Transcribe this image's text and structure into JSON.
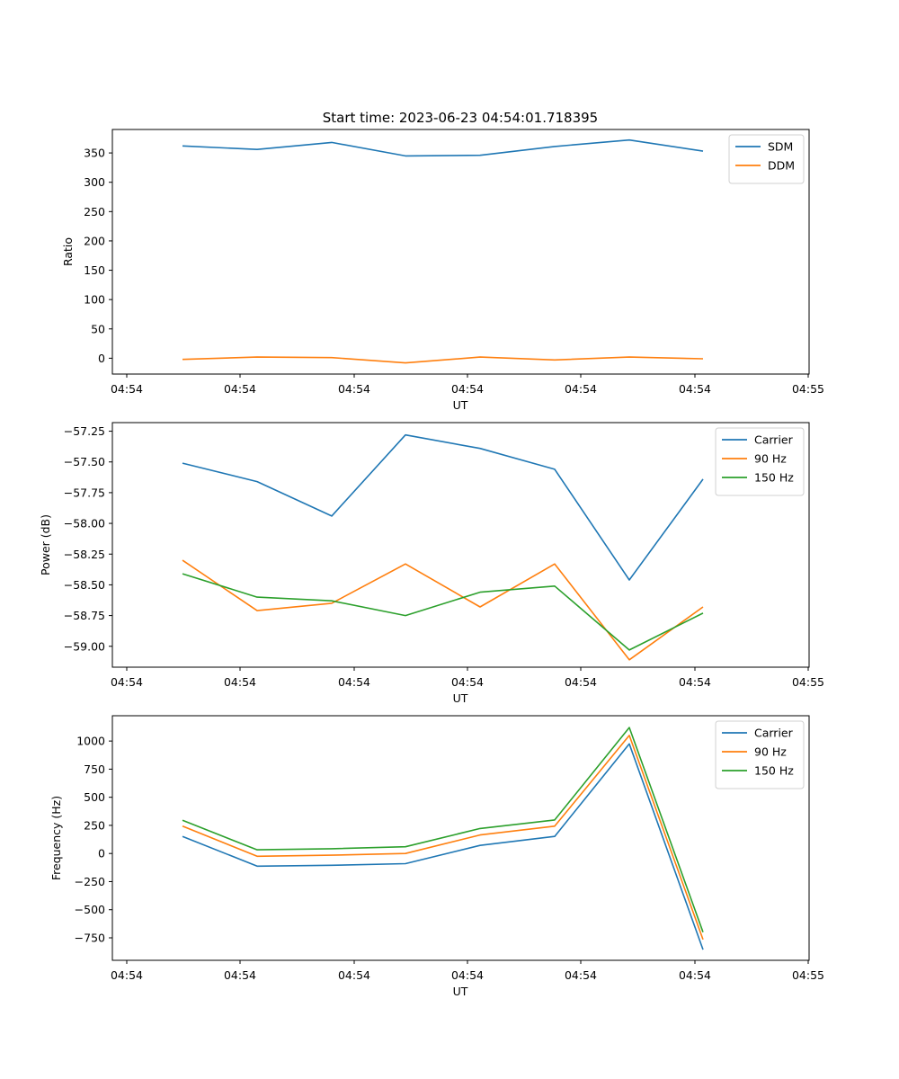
{
  "figure_title": "Start time: 2023-06-23 04:54:01.718395",
  "chart_data": [
    {
      "type": "line",
      "title": "Start time: 2023-06-23 04:54:01.718395",
      "xlabel": "UT",
      "ylabel": "Ratio",
      "x_tick_labels": [
        "04:54",
        "04:54",
        "04:54",
        "04:54",
        "04:54",
        "04:54",
        "04:54",
        "04:55"
      ],
      "y_ticks": [
        0,
        50,
        100,
        150,
        200,
        250,
        300,
        350
      ],
      "ylim": [
        -27,
        390
      ],
      "legend_position": "top-right",
      "grid": false,
      "series": [
        {
          "name": "SDM",
          "color": "#1f77b4",
          "values": [
            362,
            356,
            368,
            345,
            346,
            361,
            372,
            353
          ]
        },
        {
          "name": "DDM",
          "color": "#ff7f0e",
          "values": [
            -2,
            2,
            1,
            -8,
            2,
            -3,
            2,
            -1
          ]
        }
      ]
    },
    {
      "type": "line",
      "title": "",
      "xlabel": "UT",
      "ylabel": "Power (dB)",
      "x_tick_labels": [
        "04:54",
        "04:54",
        "04:54",
        "04:54",
        "04:54",
        "04:54",
        "04:54",
        "04:55"
      ],
      "y_ticks": [
        -59.0,
        -58.75,
        -58.5,
        -58.25,
        -58.0,
        -57.75,
        -57.5,
        -57.25
      ],
      "ylim": [
        -59.17,
        -57.18
      ],
      "legend_position": "top-right",
      "grid": false,
      "series": [
        {
          "name": "Carrier",
          "color": "#1f77b4",
          "values": [
            -57.51,
            -57.66,
            -57.94,
            -57.28,
            -57.39,
            -57.56,
            -58.46,
            -57.64
          ]
        },
        {
          "name": "90 Hz",
          "color": "#ff7f0e",
          "values": [
            -58.3,
            -58.71,
            -58.65,
            -58.33,
            -58.68,
            -58.33,
            -59.11,
            -58.68
          ]
        },
        {
          "name": "150 Hz",
          "color": "#2ca02c",
          "values": [
            -58.41,
            -58.6,
            -58.63,
            -58.75,
            -58.56,
            -58.51,
            -59.03,
            -58.73
          ]
        }
      ]
    },
    {
      "type": "line",
      "title": "",
      "xlabel": "UT",
      "ylabel": "Frequency (Hz)",
      "x_tick_labels": [
        "04:54",
        "04:54",
        "04:54",
        "04:54",
        "04:54",
        "04:54",
        "04:54",
        "04:55"
      ],
      "y_ticks": [
        -750,
        -500,
        -250,
        0,
        250,
        500,
        750,
        1000
      ],
      "ylim": [
        -950,
        1225
      ],
      "legend_position": "top-right",
      "grid": false,
      "series": [
        {
          "name": "Carrier",
          "color": "#1f77b4",
          "values": [
            152,
            -113,
            -105,
            -90,
            72,
            152,
            975,
            -855
          ]
        },
        {
          "name": "90 Hz",
          "color": "#ff7f0e",
          "values": [
            243,
            -25,
            -15,
            0,
            165,
            243,
            1050,
            -765
          ]
        },
        {
          "name": "150 Hz",
          "color": "#2ca02c",
          "values": [
            295,
            33,
            42,
            60,
            222,
            298,
            1120,
            -700
          ]
        }
      ]
    }
  ]
}
